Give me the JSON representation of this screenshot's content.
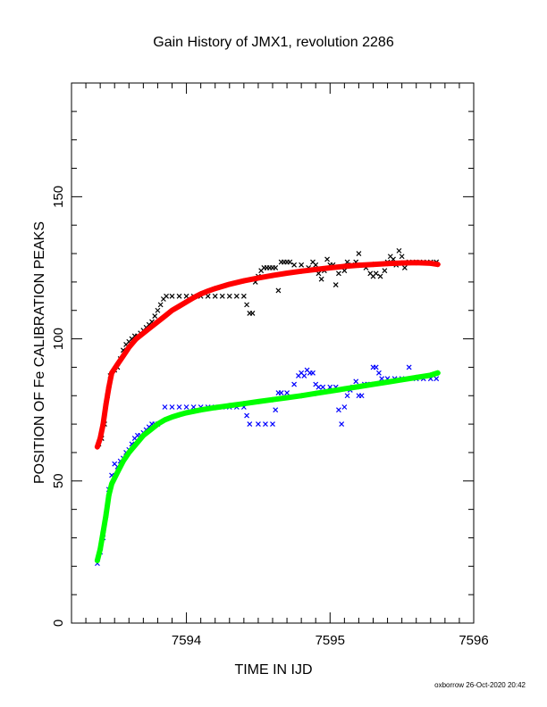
{
  "chart_data": {
    "type": "scatter",
    "title": "Gain History of JMX1, revolution 2286",
    "xlabel": "TIME IN IJD",
    "ylabel": "POSITION OF Fe CALIBRATION PEAKS",
    "xlim": [
      7593.2,
      7596.0
    ],
    "ylim": [
      0,
      190
    ],
    "x_ticks": [
      7594,
      7595,
      7596
    ],
    "y_ticks": [
      0,
      50,
      100,
      150
    ],
    "grid": false,
    "series": [
      {
        "color": "#000000",
        "marker": "x",
        "points": [
          [
            7593.39,
            63
          ],
          [
            7593.41,
            65
          ],
          [
            7593.43,
            70
          ],
          [
            7593.45,
            80
          ],
          [
            7593.47,
            87
          ],
          [
            7593.5,
            89
          ],
          [
            7593.52,
            90
          ],
          [
            7593.54,
            93
          ],
          [
            7593.56,
            96
          ],
          [
            7593.58,
            98
          ],
          [
            7593.6,
            99
          ],
          [
            7593.62,
            100
          ],
          [
            7593.64,
            101
          ],
          [
            7593.66,
            101
          ],
          [
            7593.68,
            102
          ],
          [
            7593.7,
            103
          ],
          [
            7593.72,
            104
          ],
          [
            7593.74,
            105
          ],
          [
            7593.76,
            106
          ],
          [
            7593.78,
            108
          ],
          [
            7593.8,
            110
          ],
          [
            7593.82,
            112
          ],
          [
            7593.84,
            114
          ],
          [
            7593.86,
            115
          ],
          [
            7593.9,
            115
          ],
          [
            7593.95,
            115
          ],
          [
            7594.0,
            115
          ],
          [
            7594.05,
            115
          ],
          [
            7594.1,
            115
          ],
          [
            7594.15,
            115
          ],
          [
            7594.2,
            115
          ],
          [
            7594.25,
            115
          ],
          [
            7594.3,
            115
          ],
          [
            7594.35,
            115
          ],
          [
            7594.4,
            115
          ],
          [
            7594.42,
            112
          ],
          [
            7594.44,
            109
          ],
          [
            7594.46,
            109
          ],
          [
            7594.48,
            120
          ],
          [
            7594.5,
            122
          ],
          [
            7594.52,
            124
          ],
          [
            7594.54,
            125
          ],
          [
            7594.56,
            125
          ],
          [
            7594.58,
            125
          ],
          [
            7594.6,
            125
          ],
          [
            7594.62,
            125
          ],
          [
            7594.64,
            117
          ],
          [
            7594.66,
            127
          ],
          [
            7594.68,
            127
          ],
          [
            7594.7,
            127
          ],
          [
            7594.72,
            127
          ],
          [
            7594.75,
            126
          ],
          [
            7594.8,
            126
          ],
          [
            7594.85,
            125
          ],
          [
            7594.88,
            127
          ],
          [
            7594.9,
            126
          ],
          [
            7594.92,
            123
          ],
          [
            7594.94,
            121
          ],
          [
            7594.96,
            124
          ],
          [
            7594.98,
            128
          ],
          [
            7595.0,
            126
          ],
          [
            7595.02,
            126
          ],
          [
            7595.04,
            119
          ],
          [
            7595.06,
            123
          ],
          [
            7595.1,
            124
          ],
          [
            7595.12,
            127
          ],
          [
            7595.15,
            126
          ],
          [
            7595.18,
            127
          ],
          [
            7595.2,
            130
          ],
          [
            7595.22,
            126
          ],
          [
            7595.25,
            125
          ],
          [
            7595.28,
            123
          ],
          [
            7595.3,
            122
          ],
          [
            7595.32,
            123
          ],
          [
            7595.35,
            122
          ],
          [
            7595.38,
            124
          ],
          [
            7595.4,
            127
          ],
          [
            7595.42,
            129
          ],
          [
            7595.44,
            128
          ],
          [
            7595.46,
            126
          ],
          [
            7595.48,
            131
          ],
          [
            7595.5,
            129
          ],
          [
            7595.52,
            125
          ],
          [
            7595.55,
            127
          ],
          [
            7595.6,
            127
          ],
          [
            7595.65,
            127
          ],
          [
            7595.7,
            127
          ],
          [
            7595.74,
            127
          ]
        ]
      },
      {
        "color": "#0000ff",
        "marker": "x",
        "points": [
          [
            7593.38,
            21
          ],
          [
            7593.4,
            25
          ],
          [
            7593.42,
            30
          ],
          [
            7593.44,
            38
          ],
          [
            7593.46,
            47
          ],
          [
            7593.48,
            52
          ],
          [
            7593.5,
            56
          ],
          [
            7593.52,
            55
          ],
          [
            7593.54,
            57
          ],
          [
            7593.56,
            58
          ],
          [
            7593.58,
            60
          ],
          [
            7593.6,
            61
          ],
          [
            7593.62,
            63
          ],
          [
            7593.64,
            65
          ],
          [
            7593.66,
            66
          ],
          [
            7593.68,
            66
          ],
          [
            7593.7,
            67
          ],
          [
            7593.72,
            68
          ],
          [
            7593.74,
            69
          ],
          [
            7593.76,
            70
          ],
          [
            7593.78,
            70
          ],
          [
            7593.8,
            70
          ],
          [
            7593.85,
            76
          ],
          [
            7593.9,
            76
          ],
          [
            7593.95,
            76
          ],
          [
            7594.0,
            76
          ],
          [
            7594.05,
            76
          ],
          [
            7594.1,
            76
          ],
          [
            7594.15,
            76
          ],
          [
            7594.2,
            76
          ],
          [
            7594.25,
            76
          ],
          [
            7594.3,
            76
          ],
          [
            7594.35,
            76
          ],
          [
            7594.4,
            76
          ],
          [
            7594.42,
            73
          ],
          [
            7594.44,
            70
          ],
          [
            7594.5,
            70
          ],
          [
            7594.55,
            70
          ],
          [
            7594.6,
            70
          ],
          [
            7594.62,
            75
          ],
          [
            7594.64,
            81
          ],
          [
            7594.66,
            81
          ],
          [
            7594.7,
            81
          ],
          [
            7594.75,
            84
          ],
          [
            7594.78,
            87
          ],
          [
            7594.8,
            88
          ],
          [
            7594.82,
            87
          ],
          [
            7594.84,
            89
          ],
          [
            7594.86,
            88
          ],
          [
            7594.88,
            88
          ],
          [
            7594.9,
            84
          ],
          [
            7594.92,
            83
          ],
          [
            7594.95,
            83
          ],
          [
            7595.0,
            83
          ],
          [
            7595.04,
            83
          ],
          [
            7595.06,
            75
          ],
          [
            7595.08,
            70
          ],
          [
            7595.1,
            76
          ],
          [
            7595.12,
            80
          ],
          [
            7595.14,
            82
          ],
          [
            7595.16,
            83
          ],
          [
            7595.18,
            85
          ],
          [
            7595.2,
            80
          ],
          [
            7595.22,
            80
          ],
          [
            7595.24,
            84
          ],
          [
            7595.26,
            84
          ],
          [
            7595.28,
            84
          ],
          [
            7595.3,
            90
          ],
          [
            7595.32,
            90
          ],
          [
            7595.34,
            88
          ],
          [
            7595.36,
            86
          ],
          [
            7595.4,
            86
          ],
          [
            7595.45,
            86
          ],
          [
            7595.5,
            86
          ],
          [
            7595.55,
            90
          ],
          [
            7595.6,
            86
          ],
          [
            7595.65,
            86
          ],
          [
            7595.7,
            86
          ],
          [
            7595.74,
            86
          ]
        ]
      },
      {
        "color": "#ff0000",
        "marker": "+",
        "fit": true,
        "points": [
          [
            7593.38,
            62
          ],
          [
            7593.4,
            65
          ],
          [
            7593.42,
            70
          ],
          [
            7593.44,
            77
          ],
          [
            7593.46,
            83
          ],
          [
            7593.48,
            88
          ],
          [
            7593.52,
            91
          ],
          [
            7593.56,
            94
          ],
          [
            7593.6,
            97
          ],
          [
            7593.65,
            100
          ],
          [
            7593.7,
            102
          ],
          [
            7593.75,
            104
          ],
          [
            7593.8,
            106
          ],
          [
            7593.85,
            108
          ],
          [
            7593.9,
            110
          ],
          [
            7593.95,
            111.5
          ],
          [
            7594.0,
            113
          ],
          [
            7594.05,
            114.5
          ],
          [
            7594.1,
            115.8
          ],
          [
            7594.15,
            116.8
          ],
          [
            7594.2,
            117.7
          ],
          [
            7594.3,
            119.2
          ],
          [
            7594.4,
            120.4
          ],
          [
            7594.5,
            121.4
          ],
          [
            7594.6,
            122.3
          ],
          [
            7594.7,
            123.1
          ],
          [
            7594.8,
            123.8
          ],
          [
            7594.9,
            124.4
          ],
          [
            7595.0,
            125
          ],
          [
            7595.1,
            125.5
          ],
          [
            7595.2,
            125.9
          ],
          [
            7595.3,
            126.2
          ],
          [
            7595.4,
            126.5
          ],
          [
            7595.5,
            126.7
          ],
          [
            7595.6,
            126.8
          ],
          [
            7595.7,
            126.6
          ],
          [
            7595.75,
            126.2
          ]
        ]
      },
      {
        "color": "#00ff00",
        "marker": "+",
        "fit": true,
        "points": [
          [
            7593.38,
            22
          ],
          [
            7593.4,
            26
          ],
          [
            7593.42,
            32
          ],
          [
            7593.44,
            38
          ],
          [
            7593.46,
            45
          ],
          [
            7593.48,
            49
          ],
          [
            7593.52,
            53
          ],
          [
            7593.56,
            57
          ],
          [
            7593.6,
            60
          ],
          [
            7593.65,
            63
          ],
          [
            7593.7,
            66
          ],
          [
            7593.75,
            68
          ],
          [
            7593.8,
            70
          ],
          [
            7593.85,
            71.5
          ],
          [
            7593.9,
            72.5
          ],
          [
            7593.95,
            73.3
          ],
          [
            7594.0,
            74
          ],
          [
            7594.1,
            75
          ],
          [
            7594.2,
            75.8
          ],
          [
            7594.3,
            76.5
          ],
          [
            7594.4,
            77.2
          ],
          [
            7594.5,
            77.9
          ],
          [
            7594.6,
            78.6
          ],
          [
            7594.7,
            79.3
          ],
          [
            7594.8,
            80
          ],
          [
            7594.9,
            80.8
          ],
          [
            7595.0,
            81.6
          ],
          [
            7595.1,
            82.4
          ],
          [
            7595.2,
            83.2
          ],
          [
            7595.3,
            84
          ],
          [
            7595.4,
            84.8
          ],
          [
            7595.5,
            85.6
          ],
          [
            7595.6,
            86.4
          ],
          [
            7595.7,
            87.2
          ],
          [
            7595.75,
            88
          ]
        ]
      }
    ]
  },
  "footer": {
    "stamp": "oxborrow 26-Oct-2020 20:42"
  }
}
